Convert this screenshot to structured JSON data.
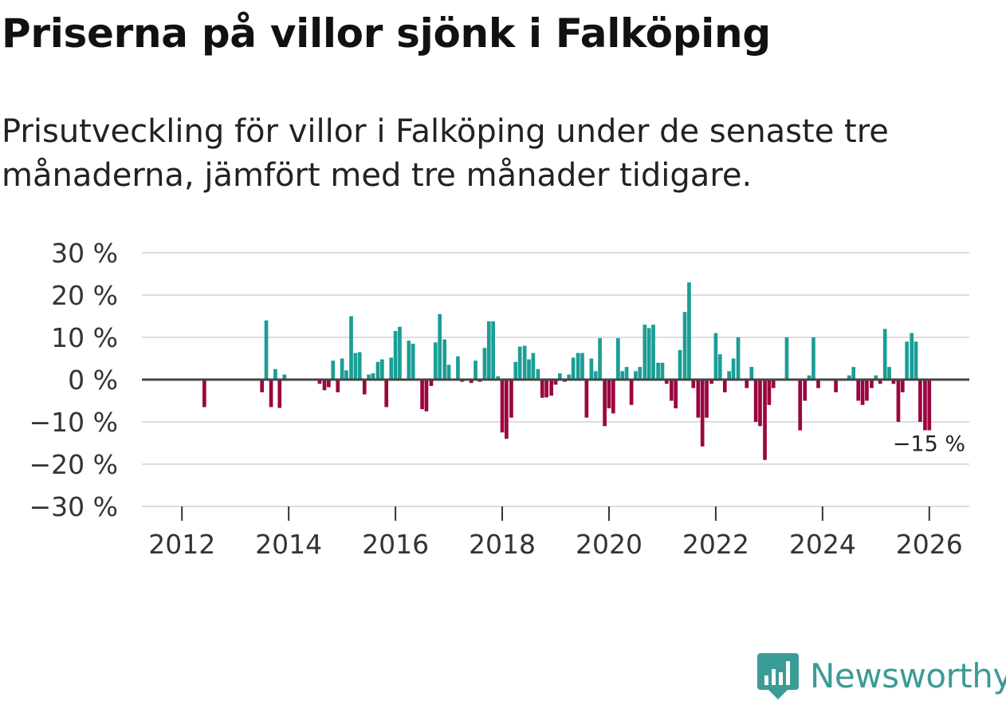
{
  "title": "Priserna på villor sjönk i Falköping",
  "subtitle": "Prisutveckling för villor i Falköping under de senaste tre månaderna, jämfört med tre månader tidigare.",
  "brand": {
    "name": "Newsworthy"
  },
  "colors": {
    "positive": "#1a9e95",
    "negative": "#9b0540",
    "grid": "#dddddd",
    "zero_line": "#444444",
    "brand": "#3b9b96"
  },
  "chart_data": {
    "type": "bar",
    "title": "Priserna på villor sjönk i Falköping",
    "xlabel": "",
    "ylabel": "",
    "y_range": [
      -30,
      30
    ],
    "y_ticks": [
      30,
      20,
      10,
      0,
      -10,
      -20,
      -30
    ],
    "y_tick_labels": [
      "30 %",
      "20 %",
      "10 %",
      "0 %",
      "−10 %",
      "−20 %",
      "−30 %"
    ],
    "x_range": [
      2011.25,
      2026.75
    ],
    "x_ticks": [
      2012,
      2014,
      2016,
      2018,
      2020,
      2022,
      2024,
      2026
    ],
    "x_tick_labels": [
      "2012",
      "2014",
      "2016",
      "2018",
      "2020",
      "2022",
      "2024",
      "2026"
    ],
    "bar_width_years": 0.07,
    "annotation": {
      "text": "−15 %",
      "x": 2026.0,
      "y": -15
    },
    "series": [
      {
        "name": "Prisutveckling (%)",
        "points": [
          [
            2012.42,
            -6.5
          ],
          [
            2013.5,
            -3
          ],
          [
            2013.58,
            14
          ],
          [
            2013.67,
            -6.5
          ],
          [
            2013.75,
            2.5
          ],
          [
            2013.83,
            -6.7
          ],
          [
            2013.92,
            1.2
          ],
          [
            2014.58,
            -1
          ],
          [
            2014.67,
            -2.5
          ],
          [
            2014.75,
            -1.8
          ],
          [
            2014.83,
            4.5
          ],
          [
            2014.92,
            -3
          ],
          [
            2015.0,
            5
          ],
          [
            2015.08,
            2.2
          ],
          [
            2015.17,
            15
          ],
          [
            2015.25,
            6.3
          ],
          [
            2015.33,
            6.5
          ],
          [
            2015.42,
            -3.5
          ],
          [
            2015.5,
            1.2
          ],
          [
            2015.58,
            1.5
          ],
          [
            2015.67,
            4.2
          ],
          [
            2015.75,
            4.8
          ],
          [
            2015.83,
            -6.5
          ],
          [
            2015.92,
            5.2
          ],
          [
            2016.0,
            11.5
          ],
          [
            2016.08,
            12.5
          ],
          [
            2016.17,
            0.2
          ],
          [
            2016.25,
            9.2
          ],
          [
            2016.33,
            8.5
          ],
          [
            2016.42,
            0.2
          ],
          [
            2016.5,
            -7
          ],
          [
            2016.58,
            -7.5
          ],
          [
            2016.67,
            -1.5
          ],
          [
            2016.75,
            8.8
          ],
          [
            2016.83,
            15.5
          ],
          [
            2016.92,
            9.5
          ],
          [
            2017.0,
            3.5
          ],
          [
            2017.08,
            0.2
          ],
          [
            2017.17,
            5.5
          ],
          [
            2017.25,
            -0.5
          ],
          [
            2017.33,
            0.2
          ],
          [
            2017.42,
            -0.8
          ],
          [
            2017.5,
            4.5
          ],
          [
            2017.58,
            -0.5
          ],
          [
            2017.67,
            7.5
          ],
          [
            2017.75,
            13.8
          ],
          [
            2017.83,
            13.8
          ],
          [
            2017.92,
            0.8
          ],
          [
            2018.0,
            -12.5
          ],
          [
            2018.08,
            -14
          ],
          [
            2018.17,
            -9
          ],
          [
            2018.25,
            4.2
          ],
          [
            2018.33,
            7.8
          ],
          [
            2018.42,
            8
          ],
          [
            2018.5,
            4.8
          ],
          [
            2018.58,
            6.3
          ],
          [
            2018.67,
            2.5
          ],
          [
            2018.75,
            -4.3
          ],
          [
            2018.83,
            -4.2
          ],
          [
            2018.92,
            -3.8
          ],
          [
            2019.0,
            -1.2
          ],
          [
            2019.08,
            1.5
          ],
          [
            2019.17,
            -0.5
          ],
          [
            2019.25,
            1.2
          ],
          [
            2019.33,
            5.2
          ],
          [
            2019.42,
            6.3
          ],
          [
            2019.5,
            6.3
          ],
          [
            2019.58,
            -9
          ],
          [
            2019.67,
            5
          ],
          [
            2019.75,
            2
          ],
          [
            2019.83,
            9.8
          ],
          [
            2019.92,
            -11
          ],
          [
            2020.0,
            -6.8
          ],
          [
            2020.08,
            -8
          ],
          [
            2020.17,
            9.8
          ],
          [
            2020.25,
            2
          ],
          [
            2020.33,
            3
          ],
          [
            2020.42,
            -6
          ],
          [
            2020.5,
            2
          ],
          [
            2020.58,
            3
          ],
          [
            2020.67,
            13
          ],
          [
            2020.75,
            12.2
          ],
          [
            2020.83,
            13
          ],
          [
            2020.92,
            4
          ],
          [
            2021.0,
            4
          ],
          [
            2021.08,
            -1
          ],
          [
            2021.17,
            -5
          ],
          [
            2021.25,
            -6.8
          ],
          [
            2021.33,
            7
          ],
          [
            2021.42,
            16
          ],
          [
            2021.5,
            23
          ],
          [
            2021.58,
            -2
          ],
          [
            2021.67,
            -9
          ],
          [
            2021.75,
            -15.8
          ],
          [
            2021.83,
            -9
          ],
          [
            2021.92,
            -1
          ],
          [
            2022.0,
            11
          ],
          [
            2022.08,
            6
          ],
          [
            2022.17,
            -3
          ],
          [
            2022.25,
            2
          ],
          [
            2022.33,
            5
          ],
          [
            2022.42,
            10
          ],
          [
            2022.5,
            0.2
          ],
          [
            2022.58,
            -2
          ],
          [
            2022.67,
            3
          ],
          [
            2022.75,
            -10
          ],
          [
            2022.83,
            -11
          ],
          [
            2022.92,
            -19
          ],
          [
            2023.0,
            -6
          ],
          [
            2023.08,
            -2
          ],
          [
            2023.33,
            10
          ],
          [
            2023.58,
            -12
          ],
          [
            2023.67,
            -5
          ],
          [
            2023.75,
            1
          ],
          [
            2023.83,
            10
          ],
          [
            2023.92,
            -2
          ],
          [
            2024.25,
            -3
          ],
          [
            2024.5,
            1
          ],
          [
            2024.58,
            3
          ],
          [
            2024.67,
            -5
          ],
          [
            2024.75,
            -6
          ],
          [
            2024.83,
            -5
          ],
          [
            2024.92,
            -2
          ],
          [
            2025.0,
            1
          ],
          [
            2025.08,
            -1
          ],
          [
            2025.17,
            12
          ],
          [
            2025.25,
            3
          ],
          [
            2025.33,
            -1
          ],
          [
            2025.42,
            -10
          ],
          [
            2025.5,
            -3
          ],
          [
            2025.58,
            9
          ],
          [
            2025.67,
            11
          ],
          [
            2025.75,
            9
          ],
          [
            2025.83,
            -10
          ],
          [
            2025.92,
            -15
          ],
          [
            2026.0,
            -15
          ]
        ]
      }
    ]
  }
}
